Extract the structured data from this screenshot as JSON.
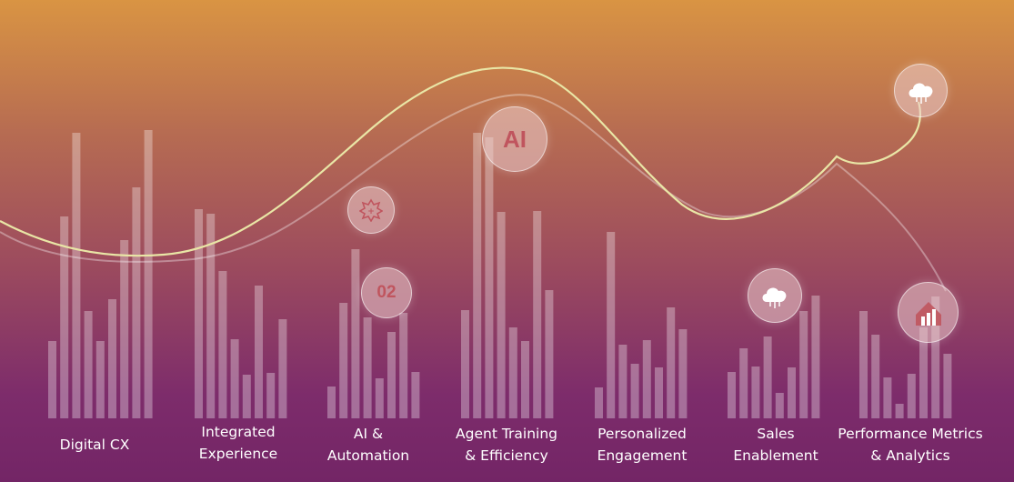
{
  "categories": [
    {
      "id": "digital-cx",
      "lines": [
        "Digital CX"
      ],
      "bars": [
        85,
        222,
        314,
        118,
        85,
        131,
        196,
        254,
        317
      ]
    },
    {
      "id": "integrated-experience",
      "lines": [
        "Integrated",
        "Experience"
      ],
      "bars": [
        230,
        225,
        162,
        87,
        48,
        146,
        50,
        109
      ]
    },
    {
      "id": "ai-automation",
      "lines": [
        "AI &",
        "Automation"
      ],
      "bars": [
        35,
        127,
        186,
        111,
        44,
        95,
        116,
        51
      ]
    },
    {
      "id": "agent-training",
      "lines": [
        "Agent Training",
        "& Efficiency"
      ],
      "bars": [
        119,
        314,
        309,
        227,
        100,
        85,
        228,
        141
      ]
    },
    {
      "id": "personalized-engagement",
      "lines": [
        "Personalized",
        "Engagement"
      ],
      "bars": [
        34,
        205,
        81,
        60,
        86,
        56,
        122,
        98
      ]
    },
    {
      "id": "sales-enablement",
      "lines": [
        "Sales",
        "Enablement"
      ],
      "bars": [
        51,
        77,
        57,
        90,
        28,
        56,
        118,
        135
      ]
    },
    {
      "id": "performance-analytics",
      "lines": [
        "Performance Metrics",
        "& Analytics"
      ],
      "bars": [
        118,
        92,
        45,
        16,
        49,
        100,
        134,
        71
      ]
    }
  ],
  "badges": {
    "ai_text": "AI",
    "step_text": "02"
  },
  "colors": {
    "line": "#e9e6a6",
    "badge_text": "#c0555e"
  }
}
